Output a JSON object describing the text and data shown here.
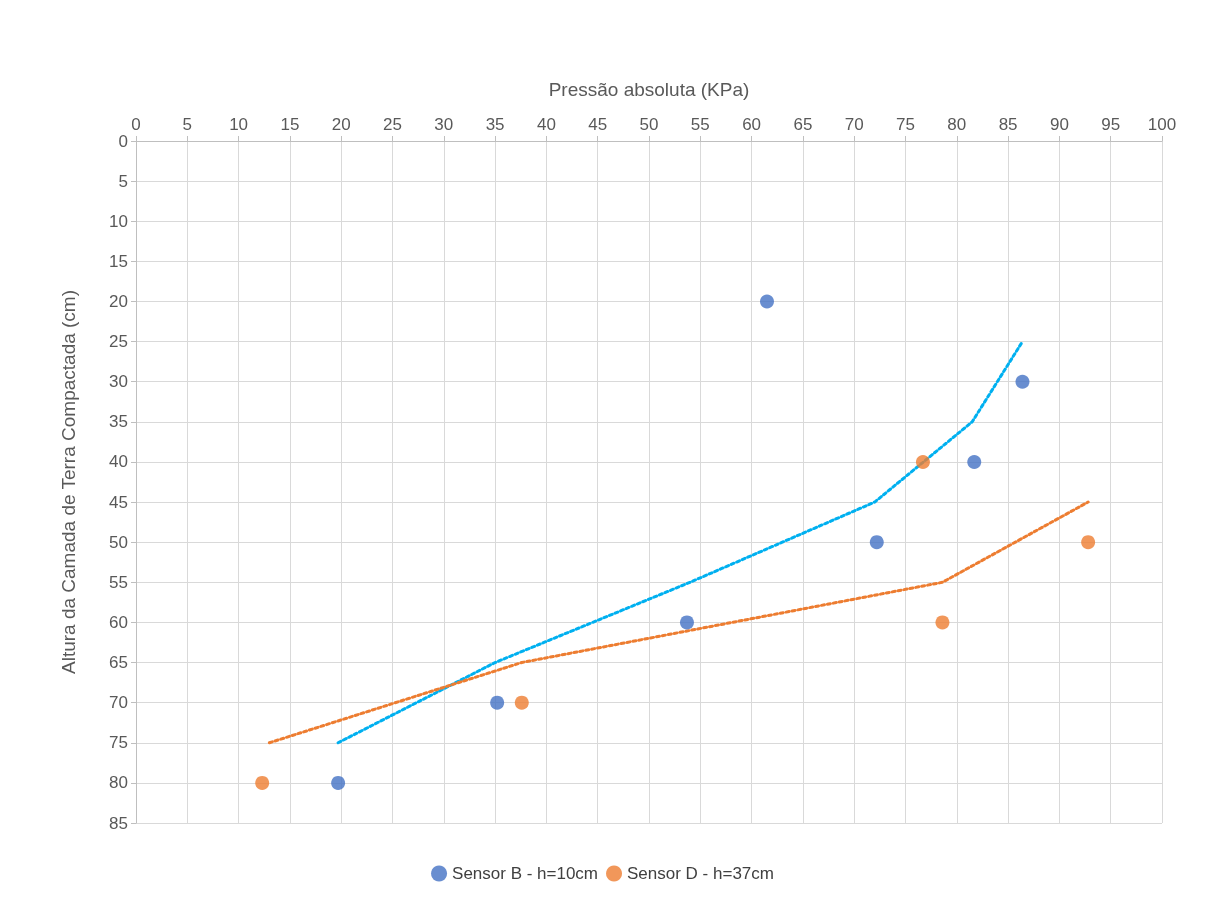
{
  "chart_data": {
    "type": "scatter",
    "xlabel": "Pressão absoluta (KPa)",
    "ylabel": "Altura da Camada de Terra Compactada (cm)",
    "xlim": [
      0,
      100
    ],
    "xticks": [
      0,
      5,
      10,
      15,
      20,
      25,
      30,
      35,
      40,
      45,
      50,
      55,
      60,
      65,
      70,
      75,
      80,
      85,
      90,
      95,
      100
    ],
    "ylim": [
      85,
      0
    ],
    "yticks": [
      0,
      5,
      10,
      15,
      20,
      25,
      30,
      35,
      40,
      45,
      50,
      55,
      60,
      65,
      70,
      75,
      80,
      85
    ],
    "grid": true,
    "legend": "bottom",
    "marker": "circle",
    "series": [
      {
        "name": "Sensor B - h=10cm",
        "color": "#4472c4",
        "x": [
          19.7,
          35.2,
          53.7,
          61.5,
          72.2,
          81.7,
          86.4
        ],
        "values": [
          80,
          70,
          60,
          20,
          50,
          40,
          30
        ]
      },
      {
        "name": "Sensor D - h=37cm",
        "color": "#ed7d31",
        "x": [
          12.3,
          37.6,
          78.6,
          76.7,
          92.8
        ],
        "values": [
          80,
          70,
          60,
          40,
          50
        ]
      },
      {
        "type": "line",
        "color": "#00b0f0",
        "line_style": "dotted",
        "marker": "none",
        "x": [
          19.7,
          35,
          54,
          72,
          81.5,
          86.4
        ],
        "values": [
          75,
          65,
          55,
          45,
          35,
          25
        ]
      },
      {
        "type": "line",
        "color": "#ed7d31",
        "line_style": "dotted",
        "marker": "none",
        "x": [
          13,
          37.6,
          78.6,
          92.8
        ],
        "values": [
          75,
          65,
          55,
          45
        ]
      }
    ]
  }
}
